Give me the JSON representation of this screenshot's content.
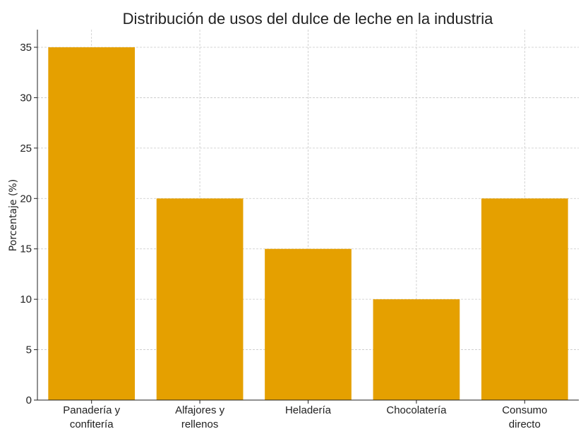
{
  "chart_data": {
    "type": "bar",
    "title": "Distribución de usos del dulce de leche en la industria",
    "xlabel": "",
    "ylabel": "Porcentaje (%)",
    "categories": [
      [
        "Panadería y",
        "confitería"
      ],
      [
        "Alfajores y",
        "rellenos"
      ],
      [
        "Heladería"
      ],
      [
        "Chocolatería"
      ],
      [
        "Consumo",
        "directo"
      ]
    ],
    "values": [
      35,
      20,
      15,
      10,
      20
    ],
    "ylim": [
      0,
      36.75
    ],
    "yticks": [
      0,
      5,
      10,
      15,
      20,
      25,
      30,
      35
    ],
    "grid": true,
    "bar_color": "#E5A000"
  }
}
